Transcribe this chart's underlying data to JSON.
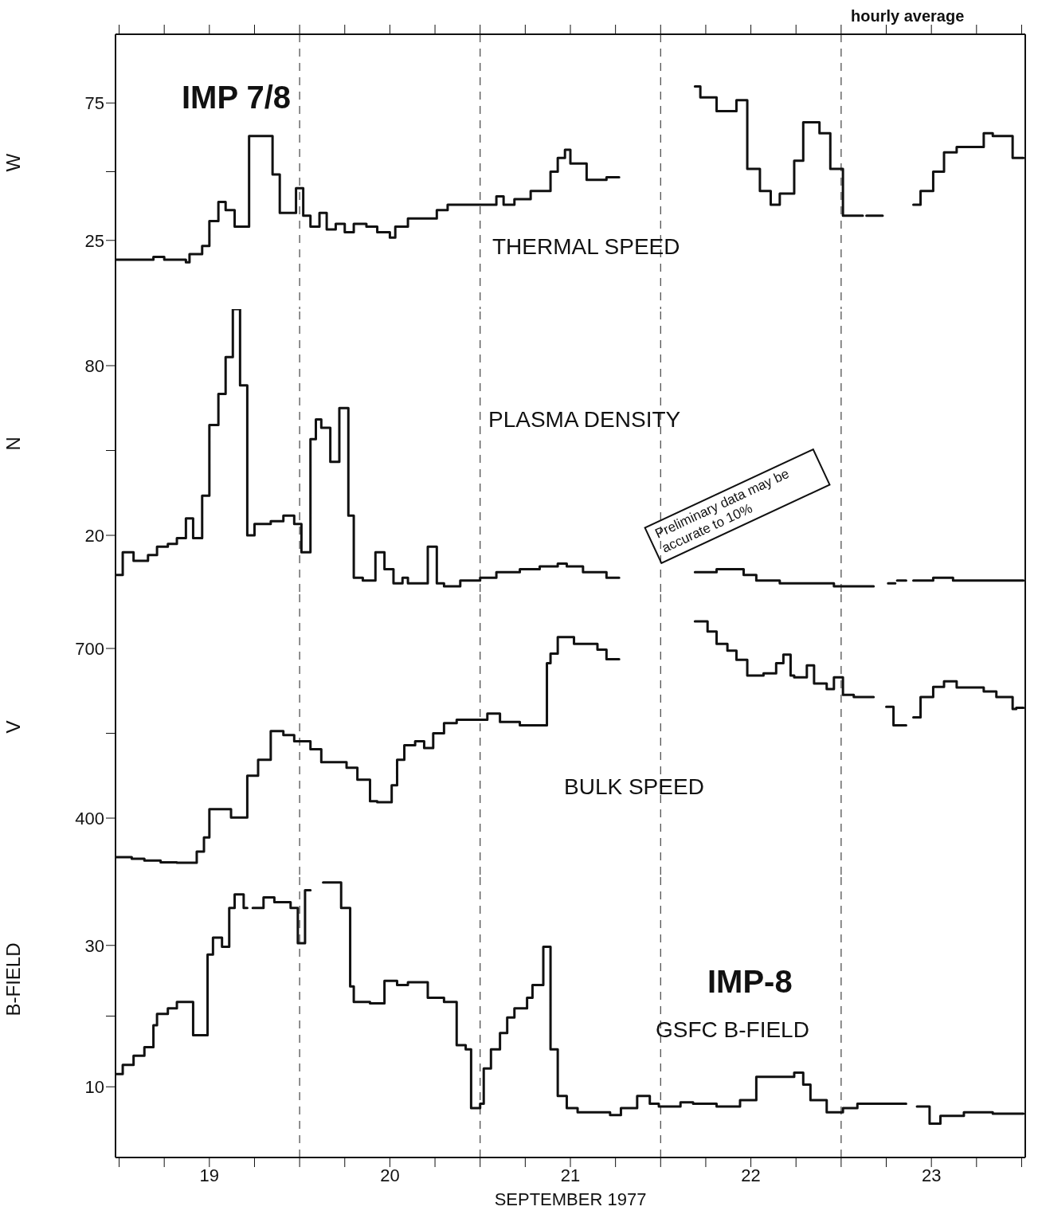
{
  "chart_data": [
    {
      "type": "step",
      "ylabel": "W",
      "color": "#111111",
      "annotations": [
        "IMP 7/8",
        "THERMAL SPEED",
        "hourly average"
      ],
      "tick_labels": "y",
      "xlim": [
        18.48,
        23.52
      ],
      "xticks": [
        {
          "value": 18.5,
          "label": null
        },
        {
          "value": 18.75,
          "label": null
        },
        {
          "value": 19,
          "label": null
        },
        {
          "value": 19.25,
          "label": null
        },
        {
          "value": 19.5,
          "label": null
        },
        {
          "value": 19.75,
          "label": null
        },
        {
          "value": 20,
          "label": null
        },
        {
          "value": 20.25,
          "label": null
        },
        {
          "value": 20.5,
          "label": null
        },
        {
          "value": 20.75,
          "label": null
        },
        {
          "value": 21,
          "label": null
        },
        {
          "value": 21.25,
          "label": null
        },
        {
          "value": 21.5,
          "label": null
        },
        {
          "value": 21.75,
          "label": null
        },
        {
          "value": 22,
          "label": null
        },
        {
          "value": 22.25,
          "label": null
        },
        {
          "value": 22.5,
          "label": null
        },
        {
          "value": 22.75,
          "label": null
        },
        {
          "value": 23,
          "label": null
        },
        {
          "value": 23.25,
          "label": null
        },
        {
          "value": 23.5,
          "label": null
        }
      ],
      "ylim": [
        0,
        100
      ],
      "yticks": [
        25,
        {
          "value": 50,
          "label": null
        },
        75
      ],
      "ref_lines": [
        {
          "axis": "x",
          "value": 19.5,
          "line_style": "dashed"
        },
        {
          "axis": "x",
          "value": 20.5,
          "line_style": "dashed"
        },
        {
          "axis": "x",
          "value": 21.5,
          "line_style": "dashed"
        },
        {
          "axis": "x",
          "value": 22.5,
          "line_style": "dashed"
        }
      ],
      "x": [
        18.48,
        18.69,
        18.75,
        18.87,
        18.89,
        18.96,
        19.0,
        19.05,
        19.09,
        19.14,
        19.22,
        19.35,
        19.39,
        19.48,
        19.52,
        19.56,
        19.61,
        19.65,
        19.7,
        19.75,
        19.8,
        19.87,
        19.93,
        20.0,
        20.03,
        20.1,
        20.17,
        20.26,
        20.32,
        20.39,
        20.59,
        20.63,
        20.69,
        20.78,
        20.89,
        20.93,
        20.97,
        21.0,
        21.09,
        21.2,
        21.27,
        21.5,
        21.69,
        21.72,
        21.81,
        21.92,
        21.98,
        22.05,
        22.11,
        22.16,
        22.24,
        22.29,
        22.38,
        22.44,
        22.51,
        22.55,
        22.62,
        22.63,
        22.64,
        22.73,
        22.8,
        22.9,
        22.94,
        23.01,
        23.07,
        23.14,
        23.29,
        23.34,
        23.45,
        23.51
      ],
      "values": [
        18,
        19,
        18,
        17,
        20,
        23,
        32,
        39,
        36,
        30,
        63,
        49,
        35,
        44,
        34,
        30,
        35,
        29,
        31,
        28,
        31,
        30,
        28,
        26,
        30,
        33,
        33,
        36,
        38,
        38,
        41,
        38,
        40,
        43,
        50,
        55,
        58,
        53,
        47,
        48,
        48,
        null,
        81,
        77,
        72,
        76,
        51,
        43,
        38,
        42,
        54,
        68,
        64,
        51,
        34,
        34,
        34,
        null,
        34,
        34,
        null,
        38,
        43,
        50,
        57,
        59,
        64,
        63,
        55,
        55
      ]
    },
    {
      "type": "step",
      "ylabel": "N",
      "color": "#111111",
      "annotations": [
        "PLASMA DENSITY",
        "Preliminary data may be accurate to 10%"
      ],
      "tick_labels": "y",
      "xlim": [
        18.48,
        23.52
      ],
      "ylim": [
        0,
        100
      ],
      "yticks": [
        20,
        {
          "value": 50,
          "label": null
        },
        80
      ],
      "ref_lines": [
        {
          "axis": "x",
          "value": 19.5,
          "line_style": "dashed"
        },
        {
          "axis": "x",
          "value": 20.5,
          "line_style": "dashed"
        },
        {
          "axis": "x",
          "value": 21.5,
          "line_style": "dashed"
        },
        {
          "axis": "x",
          "value": 22.5,
          "line_style": "dashed"
        }
      ],
      "x": [
        18.48,
        18.52,
        18.58,
        18.66,
        18.71,
        18.77,
        18.82,
        18.87,
        18.91,
        18.96,
        19.0,
        19.05,
        19.09,
        19.13,
        19.17,
        19.21,
        19.25,
        19.34,
        19.41,
        19.47,
        19.51,
        19.56,
        19.59,
        19.62,
        19.67,
        19.72,
        19.77,
        19.8,
        19.85,
        19.92,
        19.97,
        20.02,
        20.07,
        20.1,
        20.21,
        20.26,
        20.3,
        20.39,
        20.5,
        20.59,
        20.72,
        20.83,
        20.93,
        20.98,
        21.07,
        21.2,
        21.27,
        21.5,
        21.69,
        21.81,
        21.96,
        22.03,
        22.16,
        22.46,
        22.55,
        22.68,
        22.72,
        22.76,
        22.8,
        22.805,
        22.81,
        22.86,
        22.88,
        22.9,
        23.01,
        23.12,
        23.29,
        23.51
      ],
      "values": [
        6,
        14,
        11,
        13,
        16,
        17,
        19,
        26,
        19,
        34,
        59,
        70,
        83,
        100,
        73,
        20,
        24,
        25,
        27,
        24,
        14,
        54,
        61,
        58,
        46,
        65,
        27,
        5,
        4,
        14,
        8,
        3,
        5,
        3,
        16,
        3,
        2,
        4,
        5,
        7,
        8,
        9,
        10,
        9,
        7,
        5,
        5,
        null,
        7,
        8,
        6,
        4,
        3,
        2,
        2,
        2,
        null,
        3,
        3,
        null,
        4,
        4,
        null,
        4,
        5,
        4,
        4,
        4
      ]
    },
    {
      "type": "step",
      "ylabel": "V",
      "color": "#111111",
      "annotations": [
        "BULK SPEED"
      ],
      "tick_labels": "y",
      "xlim": [
        18.48,
        23.52
      ],
      "ylim": [
        300,
        800
      ],
      "yticks": [
        400,
        {
          "value": 550,
          "label": null
        },
        700
      ],
      "ref_lines": [
        {
          "axis": "x",
          "value": 19.5,
          "line_style": "dashed"
        },
        {
          "axis": "x",
          "value": 20.5,
          "line_style": "dashed"
        },
        {
          "axis": "x",
          "value": 21.5,
          "line_style": "dashed"
        },
        {
          "axis": "x",
          "value": 22.5,
          "line_style": "dashed"
        }
      ],
      "x": [
        18.48,
        18.57,
        18.64,
        18.73,
        18.82,
        18.93,
        18.97,
        19.0,
        19.12,
        19.21,
        19.27,
        19.34,
        19.41,
        19.47,
        19.56,
        19.62,
        19.76,
        19.82,
        19.89,
        19.93,
        20.01,
        20.04,
        20.08,
        20.14,
        20.19,
        20.24,
        20.3,
        20.37,
        20.54,
        20.61,
        20.72,
        20.87,
        20.89,
        20.93,
        21.02,
        21.15,
        21.2,
        21.27,
        21.5,
        21.69,
        21.76,
        21.81,
        21.87,
        21.92,
        21.98,
        22.07,
        22.14,
        22.18,
        22.22,
        22.24,
        22.31,
        22.35,
        22.42,
        22.46,
        22.51,
        22.57,
        22.68,
        22.72,
        22.75,
        22.79,
        22.86,
        22.88,
        22.9,
        22.94,
        23.01,
        23.07,
        23.14,
        23.29,
        23.36,
        23.45,
        23.47,
        23.51
      ],
      "values": [
        331,
        328,
        325,
        322,
        321,
        341,
        366,
        416,
        401,
        475,
        503,
        554,
        547,
        536,
        522,
        499,
        489,
        468,
        430,
        428,
        458,
        503,
        529,
        536,
        524,
        550,
        568,
        574,
        585,
        570,
        564,
        674,
        691,
        720,
        708,
        698,
        681,
        681,
        null,
        748,
        730,
        708,
        696,
        680,
        652,
        656,
        674,
        689,
        652,
        649,
        670,
        638,
        628,
        649,
        618,
        614,
        614,
        null,
        597,
        564,
        564,
        null,
        578,
        614,
        632,
        642,
        631,
        624,
        614,
        593,
        595,
        595
      ]
    },
    {
      "type": "step",
      "ylabel": "B-FIELD",
      "xlabel": "SEPTEMBER 1977",
      "color": "#111111",
      "annotations": [
        "IMP-8",
        "GSFC B-FIELD"
      ],
      "xlim": [
        18.48,
        23.52
      ],
      "xticks": [
        {
          "value": 18.5,
          "label": null
        },
        {
          "value": 18.75,
          "label": null
        },
        19,
        {
          "value": 19.25,
          "label": null
        },
        {
          "value": 19.5,
          "label": null
        },
        {
          "value": 19.75,
          "label": null
        },
        20,
        {
          "value": 20.25,
          "label": null
        },
        {
          "value": 20.5,
          "label": null
        },
        {
          "value": 20.75,
          "label": null
        },
        21,
        {
          "value": 21.25,
          "label": null
        },
        {
          "value": 21.5,
          "label": null
        },
        {
          "value": 21.75,
          "label": null
        },
        22,
        {
          "value": 22.25,
          "label": null
        },
        {
          "value": 22.5,
          "label": null
        },
        {
          "value": 22.75,
          "label": null
        },
        23,
        {
          "value": 23.25,
          "label": null
        },
        {
          "value": 23.5,
          "label": null
        }
      ],
      "ylim": [
        0,
        40
      ],
      "yticks": [
        10,
        {
          "value": 20,
          "label": null
        },
        30
      ],
      "ref_lines": [
        {
          "axis": "x",
          "value": 19.5,
          "line_style": "dashed"
        },
        {
          "axis": "x",
          "value": 20.5,
          "line_style": "dashed"
        },
        {
          "axis": "x",
          "value": 21.5,
          "line_style": "dashed"
        },
        {
          "axis": "x",
          "value": 22.5,
          "line_style": "dashed"
        }
      ],
      "x": [
        18.48,
        18.52,
        18.58,
        18.64,
        18.69,
        18.71,
        18.77,
        18.82,
        18.91,
        18.99,
        19.02,
        19.07,
        19.11,
        19.14,
        19.19,
        19.21,
        19.22,
        19.24,
        19.3,
        19.36,
        19.45,
        19.49,
        19.53,
        19.56,
        19.6,
        19.63,
        19.73,
        19.78,
        19.8,
        19.89,
        19.97,
        20.04,
        20.1,
        20.21,
        20.3,
        20.37,
        20.42,
        20.45,
        20.5,
        20.52,
        20.56,
        20.61,
        20.65,
        20.69,
        20.76,
        20.79,
        20.85,
        20.89,
        20.93,
        20.98,
        21.04,
        21.22,
        21.28,
        21.37,
        21.44,
        21.49,
        21.61,
        21.68,
        21.81,
        21.94,
        22.03,
        22.24,
        22.29,
        22.33,
        22.42,
        22.51,
        22.59,
        22.86,
        22.89,
        22.92,
        22.99,
        23.05,
        23.18,
        23.34,
        23.51
      ],
      "values": [
        11.8,
        13.1,
        14.4,
        15.6,
        18.7,
        20.3,
        21.1,
        22,
        17.3,
        28.7,
        31.1,
        29.8,
        35.3,
        37.2,
        35.3,
        35.3,
        null,
        35.3,
        36.8,
        36.1,
        35.3,
        30.3,
        37.8,
        37.8,
        null,
        38.9,
        35.3,
        24.2,
        22,
        21.8,
        25,
        24.4,
        24.8,
        22.6,
        22,
        15.9,
        15.3,
        7,
        7.6,
        12.6,
        15.3,
        17.6,
        19.8,
        21.1,
        22.6,
        24.4,
        29.8,
        15.3,
        8.7,
        7,
        6.4,
        6,
        7,
        8.7,
        7.6,
        7.2,
        7.8,
        7.6,
        7.2,
        8.1,
        11.4,
        12,
        10.3,
        8.1,
        6.4,
        7,
        7.6,
        7.6,
        null,
        7.2,
        4.8,
        5.9,
        6.4,
        6.2,
        6.2
      ]
    }
  ]
}
